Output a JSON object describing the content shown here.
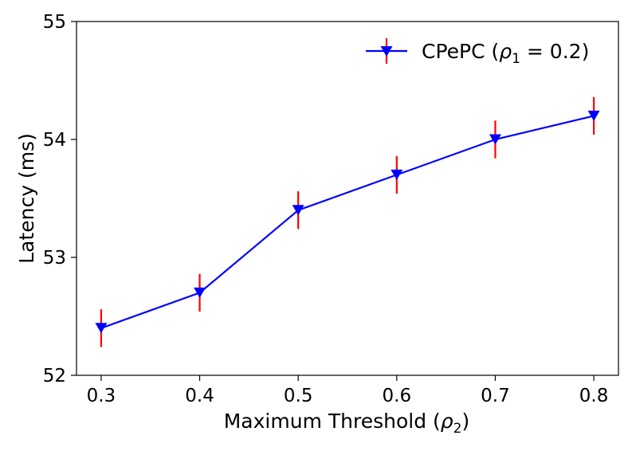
{
  "chart_data": {
    "type": "line",
    "title": "",
    "xlabel": "Maximum Threshold (ρ2)",
    "xlabel_main": "Maximum Threshold (",
    "xlabel_sym": "ρ",
    "xlabel_sub": "2",
    "xlabel_close": ")",
    "ylabel": "Latency (ms)",
    "xlim": [
      0.275,
      0.825
    ],
    "ylim": [
      52,
      55
    ],
    "x_ticks": [
      "0.3",
      "0.4",
      "0.5",
      "0.6",
      "0.7",
      "0.8"
    ],
    "y_ticks": [
      "52",
      "53",
      "54",
      "55"
    ],
    "grid": false,
    "legend_position": "top-right",
    "series": [
      {
        "name": "CPePC (ρ1 = 0.2)",
        "legend_main": "CPePC (",
        "legend_sym": "ρ",
        "legend_sub": "1",
        "legend_eq": " = 0.2)",
        "color": "#0000ff",
        "errorbar_color": "#ff0000",
        "marker": "triangle-down",
        "x": [
          0.3,
          0.4,
          0.5,
          0.6,
          0.7,
          0.8
        ],
        "values": [
          52.4,
          52.7,
          53.4,
          53.7,
          54.0,
          54.2
        ],
        "errors": [
          0.16,
          0.16,
          0.16,
          0.16,
          0.16,
          0.16
        ]
      }
    ]
  }
}
